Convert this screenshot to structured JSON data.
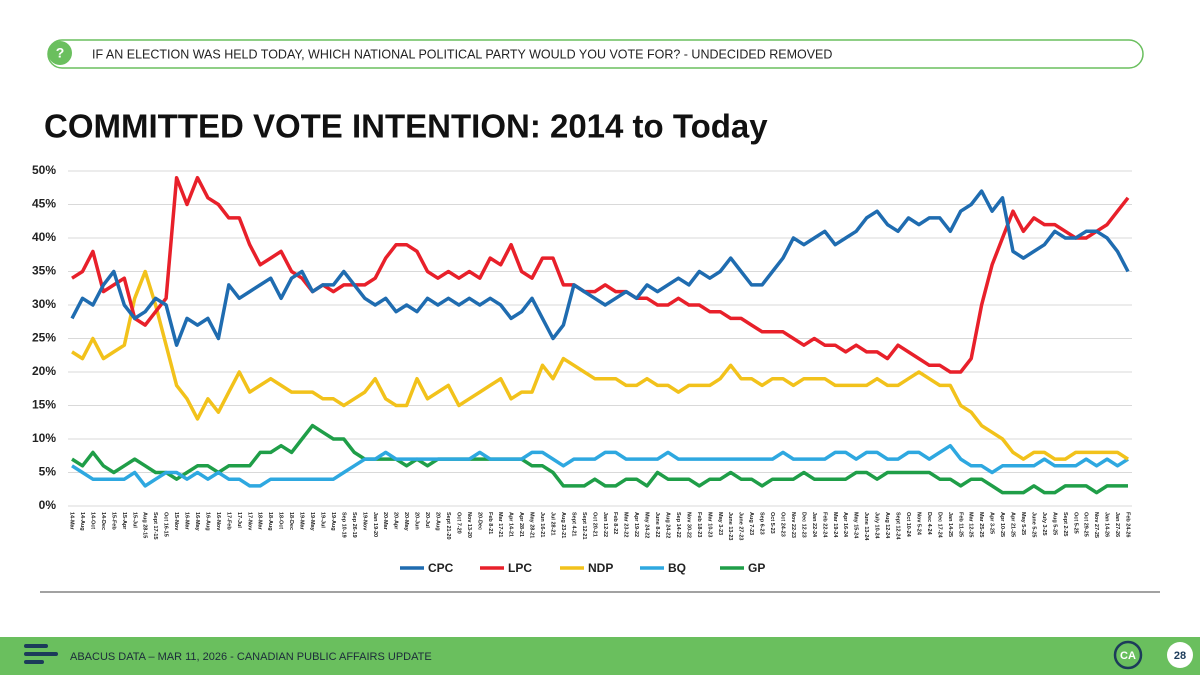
{
  "header": {
    "question": "IF AN ELECTION WAS HELD TODAY, WHICH NATIONAL POLITICAL PARTY WOULD YOU VOTE FOR? - UNDECIDED REMOVED"
  },
  "chart_data": {
    "type": "line",
    "title": "COMMITTED VOTE INTENTION: 2014 to Today",
    "categories": [
      "14-Mar",
      "14-Aug",
      "14-Oct",
      "14-Dec",
      "15-Feb",
      "15-Apr",
      "15-Jul",
      "Aug 28-15",
      "Sept 17-15",
      "Oct 16-15",
      "15-Nov",
      "16-Mar",
      "16-May",
      "16-Aug",
      "16-Nov",
      "17-Feb",
      "17-Jul",
      "17-Nov",
      "18-Mar",
      "18-Aug",
      "18-Oct",
      "18-Dec",
      "19-Mar",
      "19-May",
      "19-Jul",
      "19-Aug",
      "Sep 10-19",
      "Sep 26-19",
      "19-Nov",
      "Jan 19-20",
      "20-Mar",
      "20-Apr",
      "20-May",
      "20-Jun",
      "20-Jul",
      "20-Aug",
      "Sept 21-20",
      "Oct 7-20",
      "Nov 13-20",
      "20-Dec",
      "Feb 8-21",
      "Mar 17-21",
      "Apr 14-21",
      "Apr 28-21",
      "May 28-21",
      "Jun 16-21",
      "Jul 28-21",
      "Aug 23-21",
      "Sept 4-21",
      "Sept 12-21",
      "Oct 20-21",
      "Jan 12-22",
      "Feb 8-22",
      "Mar 23-22",
      "Apr 19-22",
      "May 24-22",
      "June 8-22",
      "Aug 24-22",
      "Sep 14-22",
      "Nov 30-22",
      "Feb 18-23",
      "Mar 10-23",
      "May 3-23",
      "June 13-23",
      "June 27-23",
      "Aug 7-23",
      "Sep 6-23",
      "Oct 5-23",
      "Oct 24-23",
      "Nov 22-23",
      "Dec 12-23",
      "Jan 22-24",
      "Feb 22-24",
      "Mar 19-24",
      "Apr 16-24",
      "May 15-24",
      "June 13-24",
      "July 10-24",
      "Aug 12-24",
      "Sept 12-24",
      "Oct 10-24",
      "Nov 5-24",
      "Dec 4-24",
      "Dec 17-24",
      "Jan 14-25",
      "Feb 11-25",
      "Mar 12-25",
      "Mar 25-25",
      "Apr 3-25",
      "Apr 10-25",
      "Apr 21-25",
      "May 5-25",
      "June 5-25",
      "July 3-25",
      "Aug 5-25",
      "Sept 2-25",
      "Oct 5-25",
      "Oct 29-25",
      "Nov 27-25",
      "Jan 14-26",
      "Jan 27-26",
      "Feb 24-26"
    ],
    "series": [
      {
        "name": "CPC",
        "color": "#1f6cb0",
        "values": [
          28,
          31,
          30,
          33,
          35,
          30,
          28,
          29,
          31,
          30,
          24,
          28,
          27,
          28,
          25,
          33,
          31,
          32,
          33,
          34,
          31,
          34,
          35,
          32,
          33,
          33,
          35,
          33,
          31,
          30,
          31,
          29,
          30,
          29,
          31,
          30,
          31,
          30,
          31,
          30,
          31,
          30,
          28,
          29,
          31,
          28,
          25,
          27,
          33,
          32,
          31,
          30,
          31,
          32,
          31,
          33,
          32,
          33,
          34,
          33,
          35,
          34,
          35,
          37,
          35,
          33,
          33,
          35,
          37,
          40,
          39,
          40,
          41,
          39,
          40,
          41,
          43,
          44,
          42,
          41,
          43,
          42,
          43,
          43,
          41,
          44,
          45,
          47,
          44,
          46,
          38,
          37,
          38,
          39,
          41,
          40,
          40,
          41,
          41,
          40,
          38,
          35
        ]
      },
      {
        "name": "LPC",
        "color": "#e8202a",
        "values": [
          34,
          35,
          38,
          32,
          33,
          34,
          28,
          27,
          29,
          31,
          49,
          45,
          49,
          46,
          45,
          43,
          43,
          39,
          36,
          37,
          38,
          35,
          34,
          32,
          33,
          32,
          33,
          33,
          33,
          34,
          37,
          39,
          39,
          38,
          35,
          34,
          35,
          34,
          35,
          34,
          37,
          36,
          39,
          35,
          34,
          37,
          37,
          33,
          33,
          32,
          32,
          33,
          32,
          32,
          31,
          31,
          30,
          30,
          31,
          30,
          30,
          29,
          29,
          28,
          28,
          27,
          26,
          26,
          26,
          25,
          24,
          25,
          24,
          24,
          23,
          24,
          23,
          23,
          22,
          24,
          23,
          22,
          21,
          21,
          20,
          20,
          22,
          30,
          36,
          40,
          44,
          41,
          43,
          42,
          42,
          41,
          40,
          40,
          41,
          42,
          44,
          46
        ]
      },
      {
        "name": "NDP",
        "color": "#f2c21b",
        "values": [
          23,
          22,
          25,
          22,
          23,
          24,
          31,
          35,
          30,
          24,
          18,
          16,
          13,
          16,
          14,
          17,
          20,
          17,
          18,
          19,
          18,
          17,
          17,
          17,
          16,
          16,
          15,
          16,
          17,
          19,
          16,
          15,
          15,
          19,
          16,
          17,
          18,
          15,
          16,
          17,
          18,
          19,
          16,
          17,
          17,
          21,
          19,
          22,
          21,
          20,
          19,
          19,
          19,
          18,
          18,
          19,
          18,
          18,
          17,
          18,
          18,
          18,
          19,
          21,
          19,
          19,
          18,
          19,
          19,
          18,
          19,
          19,
          19,
          18,
          18,
          18,
          18,
          19,
          18,
          18,
          19,
          20,
          19,
          18,
          18,
          15,
          14,
          12,
          11,
          10,
          8,
          7,
          8,
          8,
          7,
          7,
          8,
          8,
          8,
          8,
          8,
          7
        ]
      },
      {
        "name": "BQ",
        "color": "#2ea8e0",
        "values": [
          6,
          5,
          4,
          4,
          4,
          4,
          5,
          3,
          4,
          5,
          5,
          4,
          5,
          4,
          5,
          4,
          4,
          3,
          3,
          4,
          4,
          4,
          4,
          4,
          4,
          4,
          5,
          6,
          7,
          7,
          8,
          7,
          7,
          7,
          7,
          7,
          7,
          7,
          7,
          8,
          7,
          7,
          7,
          7,
          8,
          8,
          7,
          6,
          7,
          7,
          7,
          8,
          8,
          7,
          7,
          7,
          7,
          8,
          7,
          7,
          7,
          7,
          7,
          7,
          7,
          7,
          7,
          7,
          8,
          7,
          7,
          7,
          7,
          8,
          8,
          7,
          8,
          8,
          7,
          7,
          8,
          8,
          7,
          8,
          9,
          7,
          6,
          6,
          5,
          6,
          6,
          6,
          6,
          7,
          6,
          6,
          6,
          7,
          6,
          7,
          6,
          7
        ]
      },
      {
        "name": "GP",
        "color": "#1f9e48",
        "values": [
          7,
          6,
          8,
          6,
          5,
          6,
          7,
          6,
          5,
          5,
          4,
          5,
          6,
          6,
          5,
          6,
          6,
          6,
          8,
          8,
          9,
          8,
          10,
          12,
          11,
          10,
          10,
          8,
          7,
          7,
          7,
          7,
          6,
          7,
          6,
          7,
          7,
          7,
          7,
          7,
          7,
          7,
          7,
          7,
          6,
          6,
          5,
          3,
          3,
          3,
          4,
          3,
          3,
          4,
          4,
          3,
          5,
          4,
          4,
          4,
          3,
          4,
          4,
          5,
          4,
          4,
          3,
          4,
          4,
          4,
          5,
          4,
          4,
          4,
          4,
          5,
          5,
          4,
          5,
          5,
          5,
          5,
          5,
          4,
          4,
          3,
          4,
          4,
          3,
          2,
          2,
          2,
          3,
          2,
          2,
          3,
          3,
          3,
          2,
          3,
          3,
          3
        ]
      }
    ],
    "ylim": [
      0,
      50
    ],
    "yticks": [
      {
        "value": 0,
        "label": "0%"
      },
      {
        "value": 5,
        "label": "5%"
      },
      {
        "value": 10,
        "label": "10%"
      },
      {
        "value": 15,
        "label": "15%"
      },
      {
        "value": 20,
        "label": "20%"
      },
      {
        "value": 25,
        "label": "25%"
      },
      {
        "value": 30,
        "label": "30%"
      },
      {
        "value": 35,
        "label": "35%"
      },
      {
        "value": 40,
        "label": "40%"
      },
      {
        "value": 45,
        "label": "45%"
      },
      {
        "value": 50,
        "label": "50%"
      }
    ],
    "grid": true,
    "legend": "bottom"
  },
  "footer": {
    "text": "ABACUS DATA – MAR 11, 2026 - CANADIAN PUBLIC AFFAIRS UPDATE",
    "logo": "CA",
    "page": "28"
  }
}
